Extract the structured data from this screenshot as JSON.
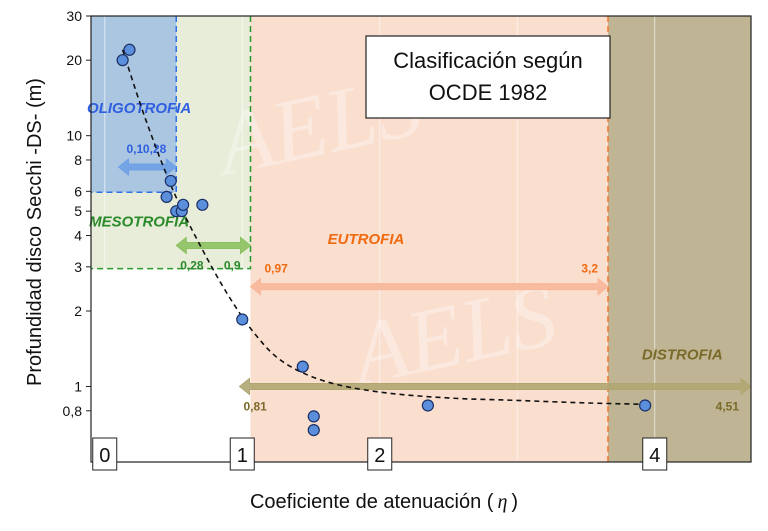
{
  "chart_data": {
    "type": "scatter",
    "title": "Clasificación según OCDE 1982",
    "title_lines": [
      "Clasificación según",
      "OCDE 1982"
    ],
    "xlabel": "Coeficiente de atenuación (",
    "xlabel_symbol": "η",
    "xlabel_close": ")",
    "ylabel": "Profundidad disco Secchi -DS- (m)",
    "xlim": [
      -0.1,
      4.7
    ],
    "ylim": [
      0.5,
      30
    ],
    "yscale": "log",
    "x_ticks": [
      {
        "value": 0,
        "label": "0"
      },
      {
        "value": 1,
        "label": "1"
      },
      {
        "value": 2,
        "label": "2"
      },
      {
        "value": 4,
        "label": "4"
      }
    ],
    "y_ticks": [
      {
        "value": 0.8,
        "label": "0,8"
      },
      {
        "value": 1,
        "label": "1"
      },
      {
        "value": 2,
        "label": "2"
      },
      {
        "value": 3,
        "label": "3"
      },
      {
        "value": 4,
        "label": "4"
      },
      {
        "value": 5,
        "label": "5"
      },
      {
        "value": 6,
        "label": "6"
      },
      {
        "value": 8,
        "label": "8"
      },
      {
        "value": 10,
        "label": "10"
      },
      {
        "value": 20,
        "label": "20"
      },
      {
        "value": 30,
        "label": "30"
      }
    ],
    "points": [
      {
        "x": 0.13,
        "y": 20
      },
      {
        "x": 0.18,
        "y": 22
      },
      {
        "x": 0.48,
        "y": 6.6
      },
      {
        "x": 0.45,
        "y": 5.7
      },
      {
        "x": 0.52,
        "y": 5.0
      },
      {
        "x": 0.56,
        "y": 5.0
      },
      {
        "x": 0.57,
        "y": 5.3
      },
      {
        "x": 0.71,
        "y": 5.3
      },
      {
        "x": 1.0,
        "y": 1.85
      },
      {
        "x": 1.44,
        "y": 1.2
      },
      {
        "x": 1.52,
        "y": 0.76
      },
      {
        "x": 1.52,
        "y": 0.67
      },
      {
        "x": 2.35,
        "y": 0.84
      },
      {
        "x": 3.93,
        "y": 0.84
      }
    ],
    "trend": [
      {
        "x": 0.13,
        "y": 22
      },
      {
        "x": 0.3,
        "y": 11.5
      },
      {
        "x": 0.5,
        "y": 6.0
      },
      {
        "x": 0.7,
        "y": 3.6
      },
      {
        "x": 0.9,
        "y": 2.3
      },
      {
        "x": 1.1,
        "y": 1.6
      },
      {
        "x": 1.3,
        "y": 1.25
      },
      {
        "x": 1.6,
        "y": 1.05
      },
      {
        "x": 2.0,
        "y": 0.95
      },
      {
        "x": 2.5,
        "y": 0.9
      },
      {
        "x": 3.0,
        "y": 0.88
      },
      {
        "x": 3.5,
        "y": 0.86
      },
      {
        "x": 3.9,
        "y": 0.85
      }
    ],
    "zones": [
      {
        "name": "OLIGOTROFIA",
        "x": [
          -0.1,
          0.52
        ],
        "y": [
          5.95,
          30
        ],
        "fill": "#7aa6e8",
        "fill_opacity": 0.55,
        "stroke": "#2f73e6",
        "label_color": "#2f5fe0"
      },
      {
        "name": "MESOTROFIA",
        "x": [
          -0.1,
          1.06
        ],
        "y": [
          2.95,
          30
        ],
        "fill": "#dde6c7",
        "fill_opacity": 0.7,
        "stroke": "#2a9a2a",
        "label_color": "#2a8a2a"
      },
      {
        "name": "EUTROFIA",
        "x": [
          1.06,
          3.66
        ],
        "y": [
          0.5,
          30
        ],
        "fill": "#f9d6c2",
        "fill_opacity": 0.8,
        "stroke": "#f07a2a",
        "label_color": "#f06a10"
      },
      {
        "name": "DISTROFIA",
        "x": [
          3.66,
          4.7
        ],
        "y": [
          0.5,
          30
        ],
        "fill": "#bcb18e",
        "fill_opacity": 0.95,
        "stroke": "#f07a2a",
        "label_color": "#7a6a2a"
      }
    ],
    "ranges": [
      {
        "zone": "OLIGOTROFIA",
        "from_label": "0,1",
        "to_label": "0,28",
        "from": 0.1,
        "to": 0.52,
        "y": 7.5,
        "color": "#6fa0e6",
        "label_color": "#2f5fe0"
      },
      {
        "zone": "MESOTROFIA",
        "from_label": "0,28",
        "to_label": "0,9",
        "from": 0.52,
        "to": 1.06,
        "y": 3.65,
        "color": "#8cc060",
        "label_color": "#2a8a2a"
      },
      {
        "zone": "EUTROFIA",
        "from_label": "0,97",
        "to_label": "3,2",
        "from": 1.06,
        "to": 3.66,
        "y": 2.5,
        "color": "#f7b79a",
        "label_color": "#f06a10"
      },
      {
        "zone": "DISTROFIA",
        "from_label": "0,81",
        "to_label": "4,51",
        "from": 0.98,
        "to": 4.7,
        "y": 1.0,
        "color": "#b0a672",
        "label_color": "#7a6a2a"
      }
    ],
    "watermark": "AELS"
  }
}
